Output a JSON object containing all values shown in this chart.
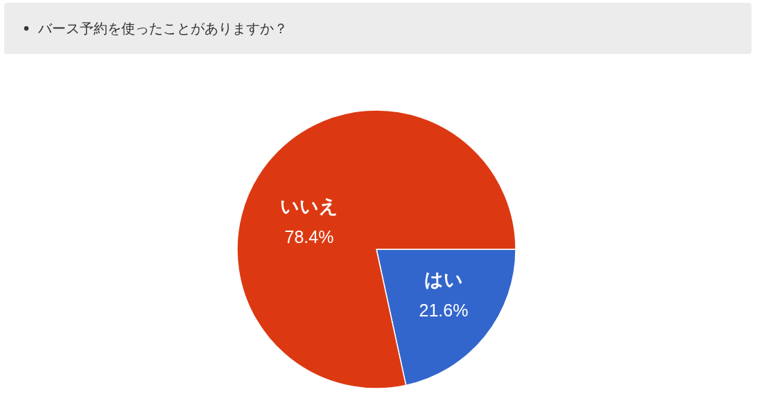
{
  "chart_data": {
    "type": "pie",
    "title": "バース予約を使ったことがありますか？",
    "categories": [
      "はい",
      "いいえ"
    ],
    "values": [
      21.6,
      78.4
    ],
    "colors": [
      "#3366cc",
      "#dc3912"
    ],
    "value_labels": [
      "21.6%",
      "78.4%"
    ]
  }
}
